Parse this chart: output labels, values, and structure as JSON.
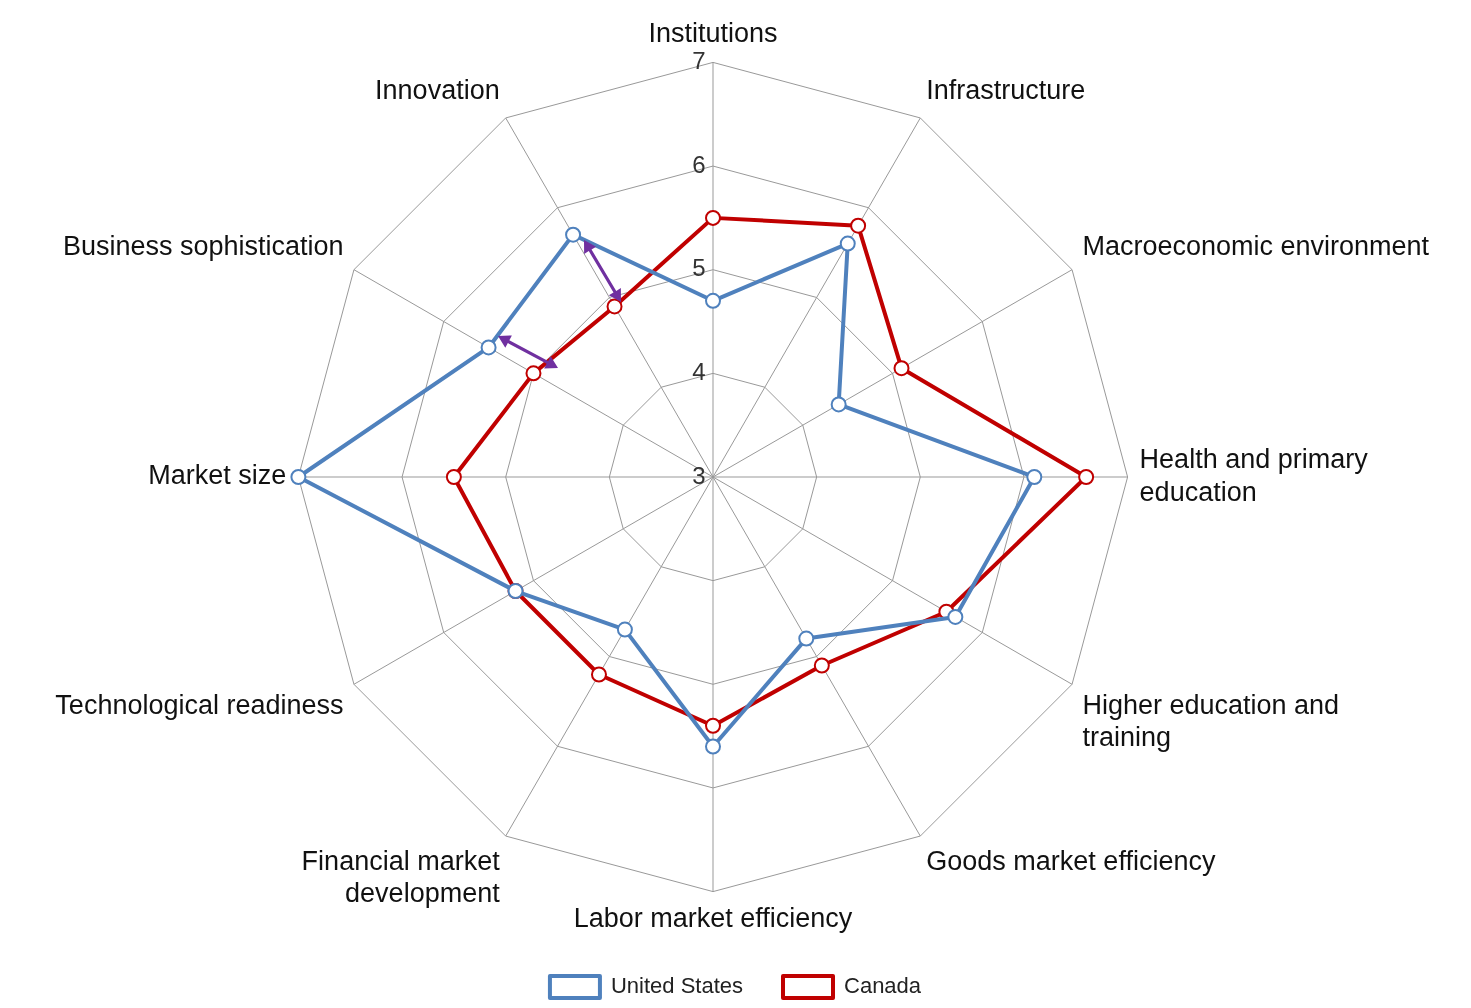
{
  "chart_data": {
    "type": "radar",
    "categories": [
      "Institutions",
      "Infrastructure",
      "Macroeconomic environment",
      "Health and primary education",
      "Higher education and training",
      "Goods market efficiency",
      "Labor market efficiency",
      "Financial market development",
      "Technological readiness",
      "Market size",
      "Business sophistication",
      "Innovation"
    ],
    "series": [
      {
        "name": "United States",
        "color": "#4f81bd",
        "values": [
          4.7,
          5.6,
          4.4,
          6.1,
          5.7,
          4.8,
          5.6,
          4.7,
          5.2,
          7.0,
          5.5,
          5.7
        ]
      },
      {
        "name": "Canada",
        "color": "#c00000",
        "values": [
          5.5,
          5.8,
          5.1,
          6.6,
          5.6,
          5.1,
          5.4,
          5.2,
          5.2,
          5.5,
          5.0,
          4.9
        ]
      }
    ],
    "ylim": [
      3,
      7
    ],
    "yticks": [
      3,
      4,
      5,
      6,
      7
    ],
    "grid": true,
    "legend": "bottom",
    "marker": "circle"
  }
}
